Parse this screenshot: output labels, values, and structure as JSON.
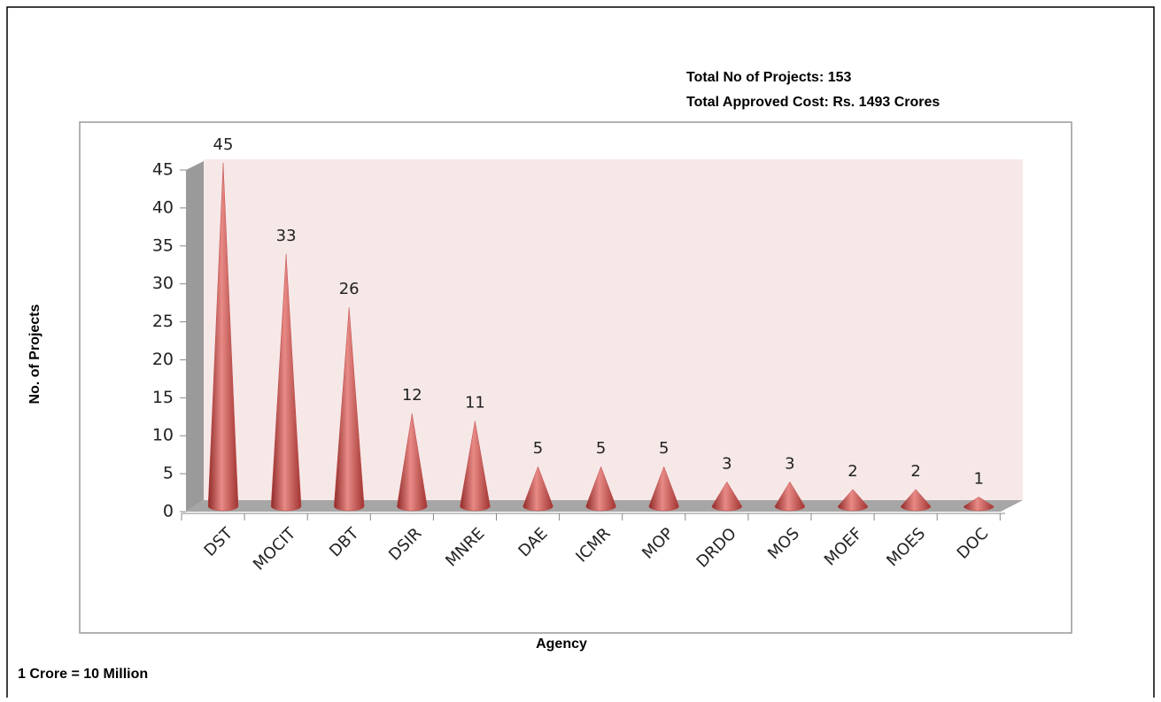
{
  "chart_data": {
    "type": "cone",
    "annotations": [
      "Total No of Projects: 153",
      "Total Approved Cost: Rs. 1493 Crores",
      "1 Crore = 10 Million"
    ],
    "x_label": "Agency",
    "y_label": "No. of Projects",
    "categories": [
      "DST",
      "MOCIT",
      "DBT",
      "DSIR",
      "MNRE",
      "DAE",
      "ICMR",
      "MOP",
      "DRDO",
      "MOS",
      "MOEF",
      "MOES",
      "DOC"
    ],
    "values": [
      45,
      33,
      26,
      12,
      11,
      5,
      5,
      5,
      3,
      3,
      2,
      2,
      1
    ],
    "color": "#c0504d",
    "ylim": [
      0,
      45
    ],
    "yticks": [
      0,
      5,
      10,
      15,
      20,
      25,
      30,
      35,
      40,
      45
    ],
    "grid": false
  }
}
